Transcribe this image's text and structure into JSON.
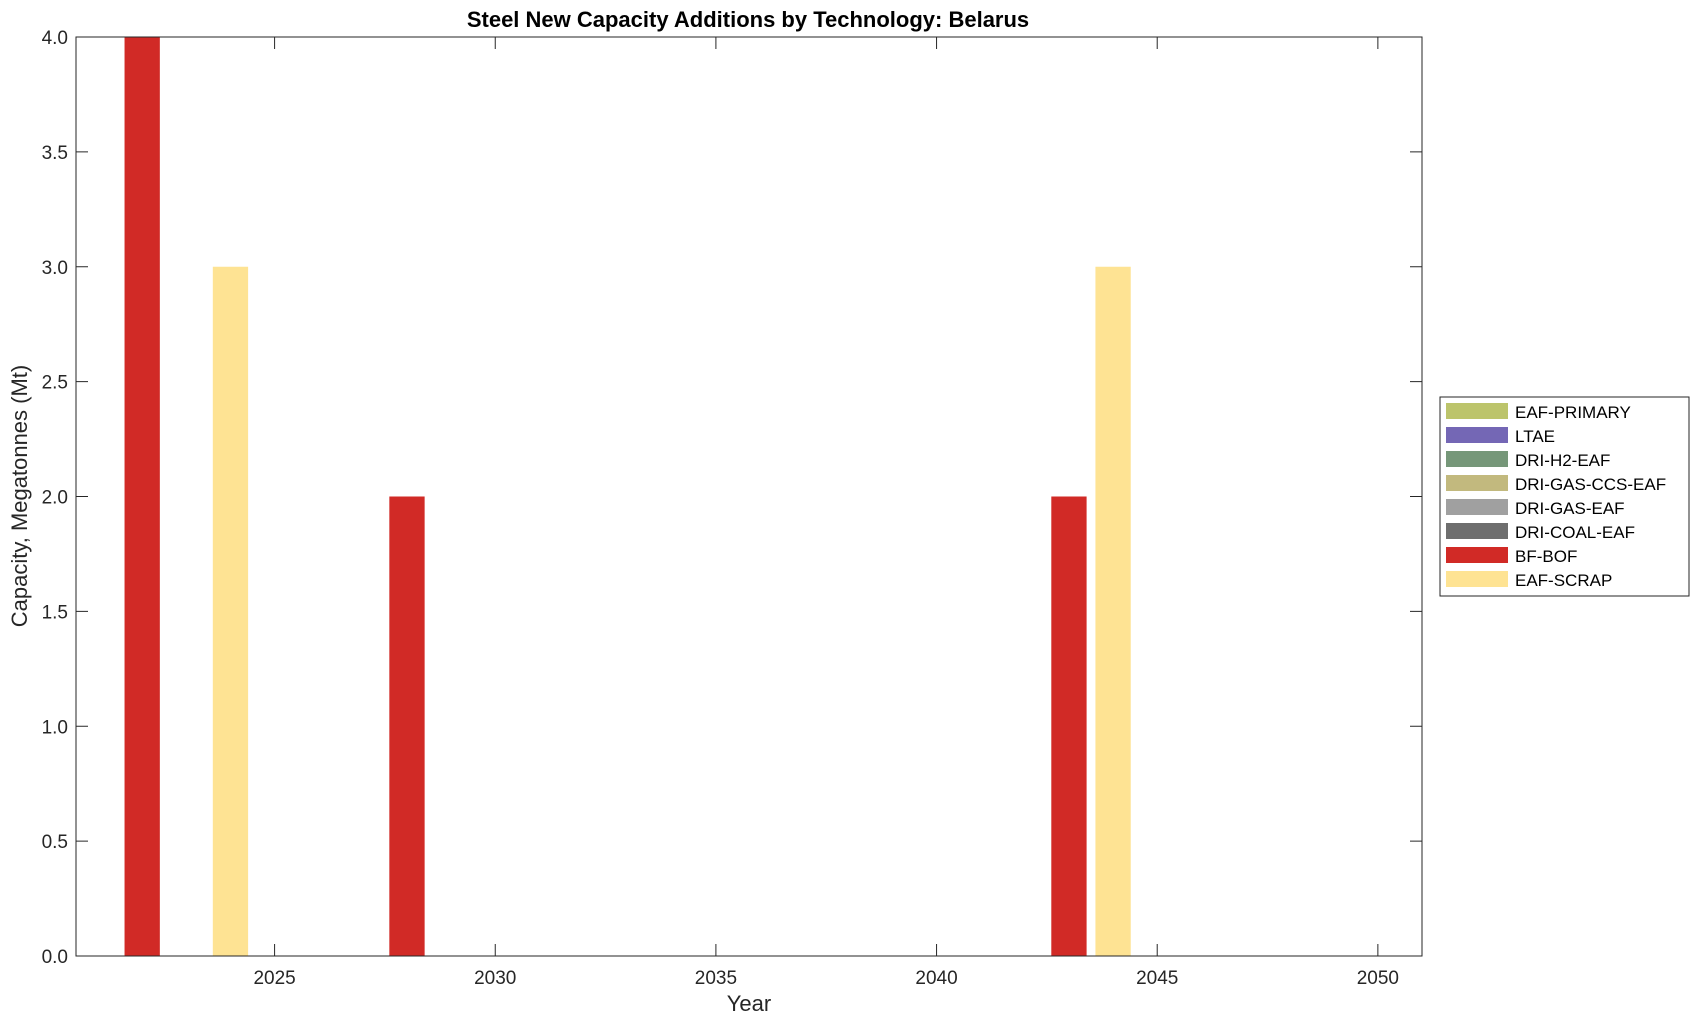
{
  "chart_data": {
    "type": "bar",
    "title": "Steel New Capacity Additions by Technology: Belarus",
    "xlabel": "Year",
    "ylabel": "Capacity, Megatonnes (Mt)",
    "xlim": [
      2020.5,
      2051
    ],
    "ylim": [
      0,
      4
    ],
    "x_ticks": [
      2025,
      2030,
      2035,
      2040,
      2045,
      2050
    ],
    "y_ticks": [
      "0.0",
      "0.5",
      "1.0",
      "1.5",
      "2.0",
      "2.5",
      "3.0",
      "3.5",
      "4.0"
    ],
    "grid": false,
    "legend_position": "right",
    "series": [
      {
        "name": "EAF-PRIMARY",
        "color": "#bcc46b",
        "points": []
      },
      {
        "name": "LTAE",
        "color": "#7467b5",
        "points": []
      },
      {
        "name": "DRI-H2-EAF",
        "color": "#769779",
        "points": []
      },
      {
        "name": "DRI-GAS-CCS-EAF",
        "color": "#c2b97e",
        "points": []
      },
      {
        "name": "DRI-GAS-EAF",
        "color": "#a0a0a0",
        "points": []
      },
      {
        "name": "DRI-COAL-EAF",
        "color": "#6e6e6e",
        "points": []
      },
      {
        "name": "BF-BOF",
        "color": "#d12a26",
        "points": [
          {
            "x": 2022,
            "y": 4
          },
          {
            "x": 2028,
            "y": 2
          },
          {
            "x": 2043,
            "y": 2
          }
        ]
      },
      {
        "name": "EAF-SCRAP",
        "color": "#fee393",
        "points": [
          {
            "x": 2024,
            "y": 3
          },
          {
            "x": 2044,
            "y": 3
          }
        ]
      }
    ]
  }
}
